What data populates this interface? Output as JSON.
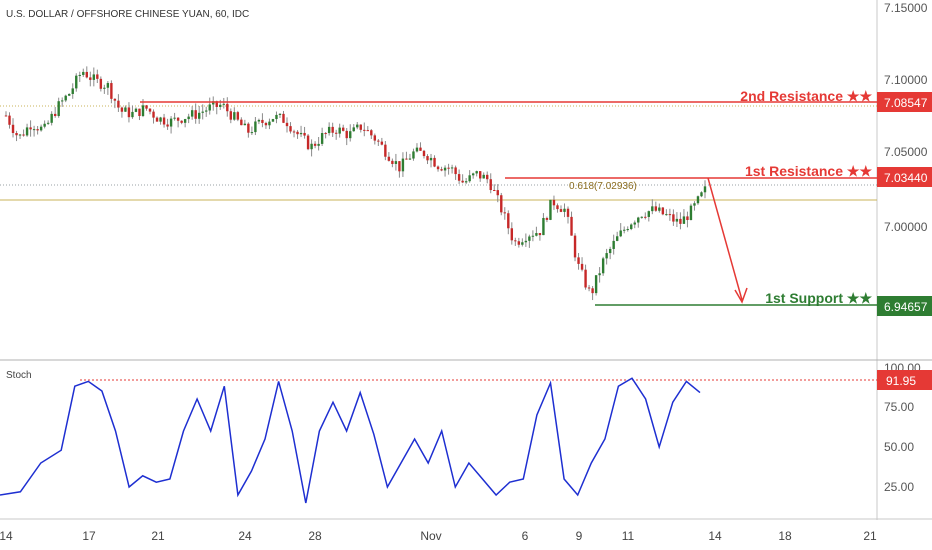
{
  "chart_data": [
    {
      "type": "candlestick",
      "title": "U.S. DOLLAR / OFFSHORE CHINESE YUAN, 60, IDC",
      "ylim": [
        6.94,
        7.155
      ],
      "y_ticks": [
        "7.15000",
        "7.10000",
        "7.05000",
        "7.00000"
      ],
      "x_tick_labels": [
        "14",
        "17",
        "21",
        "24",
        "28",
        "Nov",
        "6",
        "9",
        "11",
        "14",
        "18",
        "21"
      ],
      "close_path": [
        [
          0,
          7.075
        ],
        [
          1,
          7.06
        ],
        [
          2,
          7.07
        ],
        [
          3,
          7.065
        ],
        [
          4,
          7.08
        ],
        [
          5,
          7.09
        ],
        [
          6,
          7.105
        ],
        [
          7,
          7.098
        ],
        [
          8,
          7.095
        ],
        [
          9,
          7.078
        ],
        [
          10,
          7.076
        ],
        [
          11,
          7.08
        ],
        [
          12,
          7.073
        ],
        [
          13,
          7.071
        ],
        [
          14,
          7.074
        ],
        [
          15,
          7.076
        ],
        [
          16,
          7.08
        ],
        [
          17,
          7.082
        ],
        [
          18,
          7.073
        ],
        [
          19,
          7.064
        ],
        [
          20,
          7.07
        ],
        [
          21,
          7.074
        ],
        [
          22,
          7.072
        ],
        [
          23,
          7.062
        ],
        [
          24,
          7.054
        ],
        [
          25,
          7.062
        ],
        [
          26,
          7.066
        ],
        [
          27,
          7.062
        ],
        [
          28,
          7.068
        ],
        [
          29,
          7.06
        ],
        [
          30,
          7.05
        ],
        [
          31,
          7.04
        ],
        [
          32,
          7.05
        ],
        [
          33,
          7.05
        ],
        [
          34,
          7.042
        ],
        [
          35,
          7.04
        ],
        [
          36,
          7.03
        ],
        [
          37,
          7.036
        ],
        [
          38,
          7.032
        ],
        [
          39,
          7.012
        ],
        [
          40,
          6.99
        ],
        [
          41,
          6.996
        ],
        [
          42,
          6.998
        ],
        [
          43,
          7.018
        ],
        [
          44,
          7.012
        ],
        [
          45,
          6.975
        ],
        [
          46,
          6.955
        ],
        [
          47,
          6.978
        ],
        [
          48,
          6.992
        ],
        [
          49,
          7.003
        ],
        [
          50,
          7.01
        ],
        [
          51,
          7.012
        ],
        [
          52,
          7.008
        ],
        [
          53,
          7.003
        ],
        [
          54,
          7.012
        ],
        [
          55,
          7.025
        ]
      ],
      "levels": [
        {
          "label": "2nd Resistance ★★",
          "value": "7.08547",
          "price": 7.08547,
          "color": "#e53935"
        },
        {
          "label": "1st Resistance ★★",
          "value": "7.03440",
          "price": 7.0344,
          "color": "#e53935"
        },
        {
          "label": "1st Support ★★",
          "value": "6.94657",
          "price": 6.94657,
          "color": "#2e7d32"
        }
      ],
      "fib_label": "0.618(7.02936)",
      "fib_price": 7.02936,
      "projection_arrow": {
        "from_price": 7.0344,
        "to_price": 6.947,
        "color": "#e53935"
      }
    },
    {
      "type": "line",
      "title": "Stoch",
      "ylim": [
        0,
        100
      ],
      "y_ticks": [
        "100.00",
        "75.00",
        "50.00",
        "25.00"
      ],
      "current_value": "91.95",
      "current_color": "#e53935",
      "line_color": "#1e2fd1",
      "series": [
        {
          "values": [
            [
              0,
              20
            ],
            [
              1.5,
              22
            ],
            [
              3,
              40
            ],
            [
              4.5,
              48
            ],
            [
              5.5,
              88
            ],
            [
              6.5,
              91
            ],
            [
              7.5,
              85
            ],
            [
              8.5,
              60
            ],
            [
              9.5,
              25
            ],
            [
              10.5,
              32
            ],
            [
              11.5,
              28
            ],
            [
              12.5,
              30
            ],
            [
              13.5,
              60
            ],
            [
              14.5,
              80
            ],
            [
              15.5,
              60
            ],
            [
              16.5,
              88
            ],
            [
              17.5,
              20
            ],
            [
              18.5,
              35
            ],
            [
              19.5,
              55
            ],
            [
              20.5,
              91
            ],
            [
              21.5,
              60
            ],
            [
              22.5,
              15
            ],
            [
              23.5,
              60
            ],
            [
              24.5,
              78
            ],
            [
              25.5,
              60
            ],
            [
              26.5,
              84
            ],
            [
              27.5,
              58
            ],
            [
              28.5,
              25
            ],
            [
              29.5,
              40
            ],
            [
              30.5,
              55
            ],
            [
              31.5,
              40
            ],
            [
              32.5,
              60
            ],
            [
              33.5,
              25
            ],
            [
              34.5,
              40
            ],
            [
              35.5,
              30
            ],
            [
              36.5,
              20
            ],
            [
              37.5,
              28
            ],
            [
              38.5,
              30
            ],
            [
              39.5,
              70
            ],
            [
              40.5,
              90
            ],
            [
              41.5,
              30
            ],
            [
              42.5,
              20
            ],
            [
              43.5,
              40
            ],
            [
              44.5,
              55
            ],
            [
              45.5,
              88
            ],
            [
              46.5,
              93
            ],
            [
              47.5,
              80
            ],
            [
              48.5,
              50
            ],
            [
              49.5,
              78
            ],
            [
              50.5,
              91
            ],
            [
              51.5,
              84
            ]
          ]
        }
      ]
    }
  ]
}
